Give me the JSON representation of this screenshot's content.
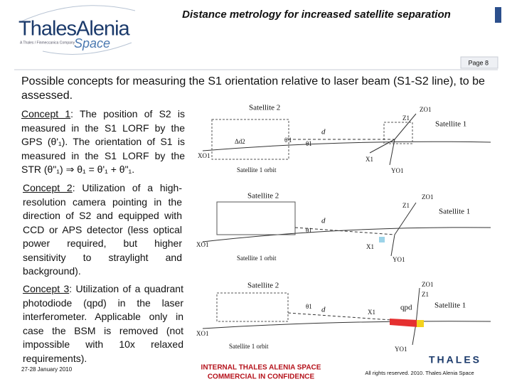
{
  "header": {
    "logo_name": "ThalesAlenia",
    "logo_space": "Space",
    "logo_tagline": "A Thales / Finmeccanica Company",
    "title": "Distance metrology for increased satellite separation",
    "page": "Page 8"
  },
  "heading": "Possible concepts for measuring the S1 orientation relative to laser beam (S1-S2 line), to be assessed.",
  "concepts": [
    {
      "label": "Concept 1",
      "text": ": The position of S2 is measured in the S1 LORF by the GPS (θ'₁). The orientation of S1 is measured in the S1 LORF by the STR (θ\"₁) ⇒ θ₁ = θ'₁ + θ\"₁."
    },
    {
      "label": "Concept 2",
      "text": ": Utilization of a high-resolution camera pointing in the direction of S2 and equipped with CCD or APS detector (less optical power required, but higher sensitivity to straylight and background)."
    },
    {
      "label": "Concept 3",
      "text": ": Utilization of a quadrant photodiode (qpd) in the laser interferometer. Applicable only in case the BSM is removed (not impossible with 10x relaxed requirements)."
    }
  ],
  "diagrams": [
    {
      "labels": [
        "Satellite 2",
        "Satellite 1",
        "Satellite 1 orbit",
        "d",
        "ZO1",
        "Z1",
        "XO1",
        "X1",
        "YO1",
        "Δd2",
        "θ'1",
        "θ1"
      ]
    },
    {
      "labels": [
        "Satellite 2",
        "Satellite 1",
        "Satellite 1 orbit",
        "d",
        "ZO1",
        "Z1",
        "XO1",
        "X1",
        "YO1",
        "θ1"
      ]
    },
    {
      "labels": [
        "Satellite 2",
        "Satellite 1",
        "Satellite 1 orbit",
        "d",
        "ZO1",
        "Z1",
        "XO1",
        "X1",
        "YO1",
        "θ1",
        "qpd"
      ]
    }
  ],
  "footer": {
    "date": "27-28 January 2010",
    "classification": [
      "INTERNAL THALES ALENIA SPACE",
      "COMMERCIAL IN CONFIDENCE"
    ],
    "brand": "THALES",
    "rights": "All rights reserved. 2010. Thales Alenia Space"
  }
}
